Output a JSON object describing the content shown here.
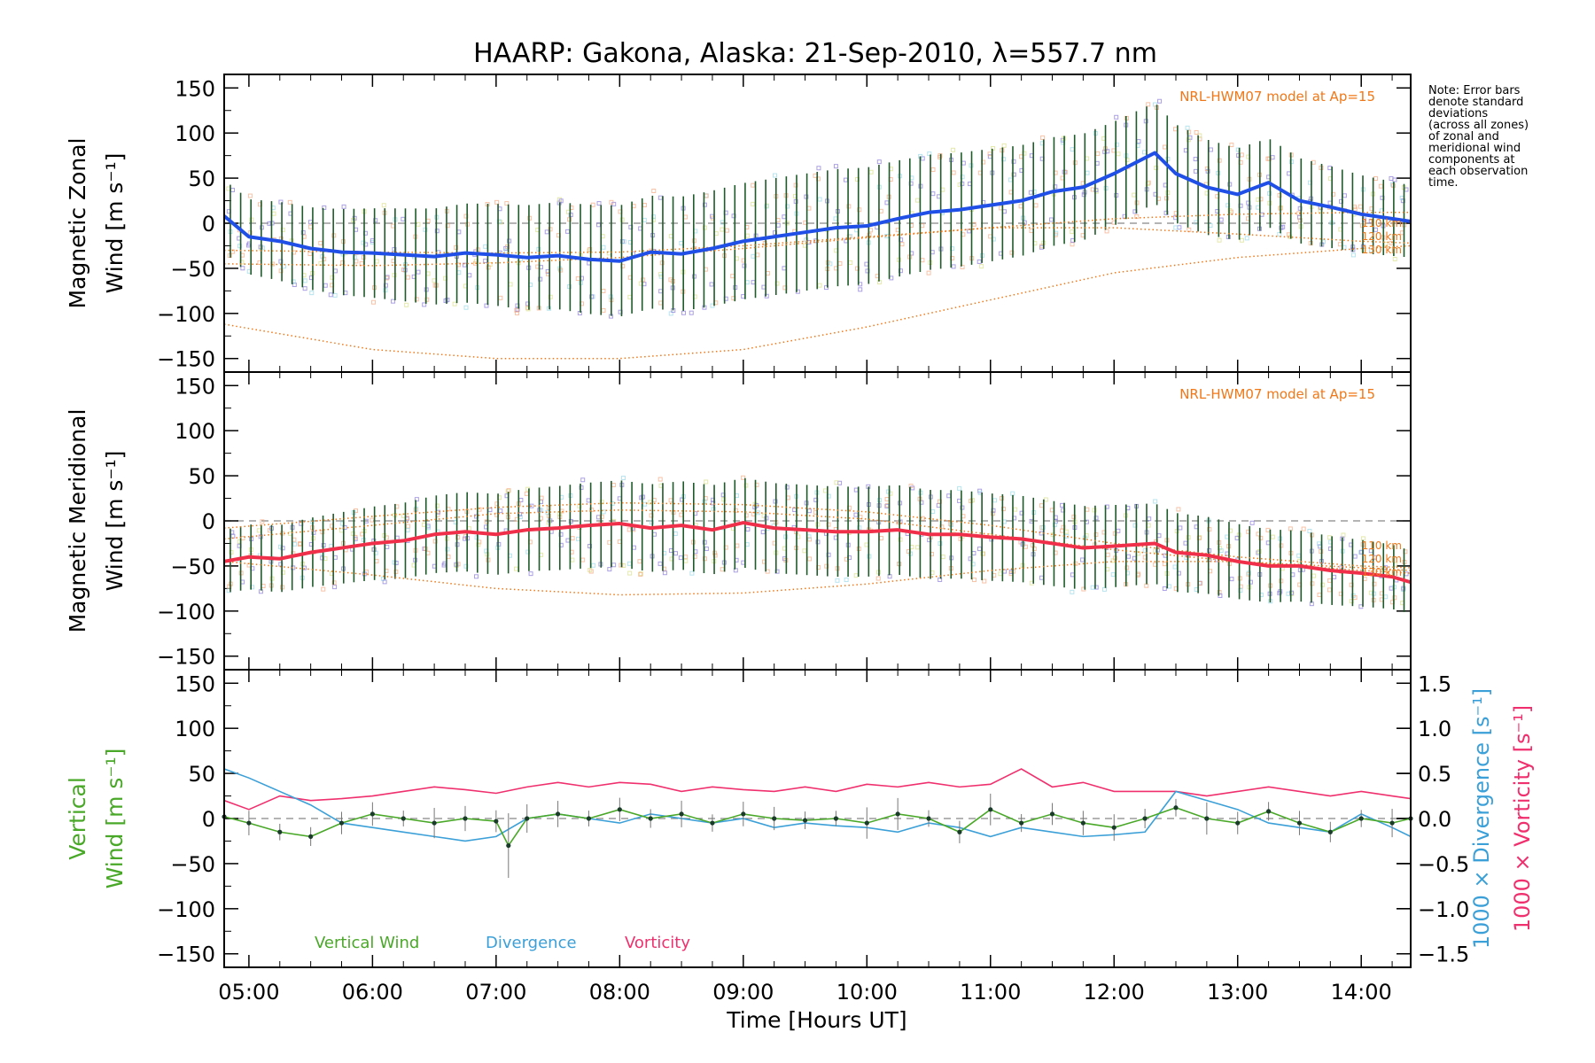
{
  "title": "HAARP: Gakona,  Alaska: 21-Sep-2010, λ=557.7 nm",
  "note_lines": [
    "Note: Error bars",
    "denote standard",
    "deviations",
    "(across all zones)",
    "of zonal and",
    "meridional wind",
    "components at",
    "each observation",
    "time."
  ],
  "colors": {
    "zonal": "#1f4fe6",
    "meridional": "#f0304a",
    "vertical_wind": "#4aa829",
    "divergence": "#3ca0d8",
    "vorticity": "#f0306e",
    "model": "#f07818",
    "errorbar": "#1f5a2a",
    "scatter": "#8878d8"
  },
  "chart_data": [
    {
      "type": "line",
      "panel": "zonal",
      "ylabel_line1": "Magnetic Zonal",
      "ylabel_line2": "Wind [m s⁻¹]",
      "ylim": [
        -165,
        165
      ],
      "yticks": [
        -150,
        -100,
        -50,
        0,
        50,
        100,
        150
      ],
      "model_label": "NRL-HWM07 model at Ap=15",
      "model_alt_labels": [
        "110 km",
        "120 km",
        "130 km"
      ],
      "series": [
        {
          "x": [
            4.8,
            5.0,
            5.25,
            5.5,
            5.75,
            6.0,
            6.25,
            6.5,
            6.75,
            7.0,
            7.25,
            7.5,
            7.75,
            8.0,
            8.25,
            8.5,
            8.75,
            9.0,
            9.25,
            9.5,
            9.75,
            10.0,
            10.25,
            10.5,
            10.75,
            11.0,
            11.25,
            11.5,
            11.75,
            12.0,
            12.33,
            12.5,
            12.75,
            13.0,
            13.25,
            13.5,
            13.75,
            14.0,
            14.25,
            14.4
          ],
          "y": [
            8,
            -15,
            -20,
            -28,
            -32,
            -33,
            -35,
            -37,
            -33,
            -35,
            -38,
            -36,
            -40,
            -42,
            -32,
            -34,
            -28,
            -20,
            -15,
            -10,
            -5,
            -3,
            5,
            12,
            15,
            20,
            25,
            35,
            40,
            55,
            78,
            55,
            40,
            32,
            45,
            25,
            18,
            10,
            5,
            2
          ]
        }
      ],
      "model": [
        {
          "x": [
            4.8,
            6.0,
            7.0,
            8.0,
            9.0,
            10.0,
            11.0,
            12.0,
            13.0,
            14.0,
            14.4
          ],
          "y": [
            -45,
            -47,
            -44,
            -38,
            -28,
            -16,
            -5,
            5,
            10,
            12,
            12
          ]
        },
        {
          "x": [
            4.8,
            6.0,
            7.0,
            8.0,
            9.0,
            10.0,
            11.0,
            12.0,
            13.0,
            14.0,
            14.4
          ],
          "y": [
            -30,
            -32,
            -33,
            -32,
            -25,
            -15,
            -5,
            -5,
            -12,
            -20,
            -22
          ]
        },
        {
          "x": [
            4.8,
            6.0,
            7.0,
            8.0,
            9.0,
            10.0,
            11.0,
            12.0,
            13.0,
            14.0,
            14.4
          ],
          "y": [
            -112,
            -140,
            -150,
            -150,
            -140,
            -115,
            -85,
            -55,
            -38,
            -28,
            -25
          ]
        }
      ]
    },
    {
      "type": "line",
      "panel": "meridional",
      "ylabel_line1": "Magnetic Meridional",
      "ylabel_line2": "Wind [m s⁻¹]",
      "ylim": [
        -165,
        165
      ],
      "yticks": [
        -150,
        -100,
        -50,
        0,
        50,
        100,
        150
      ],
      "model_label": "NRL-HWM07 model at Ap=15",
      "model_alt_labels": [
        "110 km",
        "120 km",
        "130 km"
      ],
      "series": [
        {
          "x": [
            4.8,
            5.0,
            5.25,
            5.5,
            5.75,
            6.0,
            6.25,
            6.5,
            6.75,
            7.0,
            7.25,
            7.5,
            7.75,
            8.0,
            8.25,
            8.5,
            8.75,
            9.0,
            9.25,
            9.5,
            9.75,
            10.0,
            10.25,
            10.5,
            10.75,
            11.0,
            11.25,
            11.5,
            11.75,
            12.0,
            12.33,
            12.5,
            12.75,
            13.0,
            13.25,
            13.5,
            13.75,
            14.0,
            14.25,
            14.4
          ],
          "y": [
            -45,
            -40,
            -42,
            -35,
            -30,
            -25,
            -22,
            -15,
            -12,
            -15,
            -10,
            -8,
            -5,
            -3,
            -8,
            -5,
            -10,
            -2,
            -8,
            -10,
            -12,
            -12,
            -10,
            -15,
            -15,
            -18,
            -20,
            -25,
            -30,
            -28,
            -25,
            -35,
            -38,
            -45,
            -50,
            -50,
            -55,
            -58,
            -62,
            -68
          ]
        }
      ],
      "model": [
        {
          "x": [
            4.8,
            6.0,
            7.0,
            8.0,
            9.0,
            10.0,
            11.0,
            12.0,
            13.0,
            14.0,
            14.4
          ],
          "y": [
            -8,
            5,
            15,
            20,
            18,
            10,
            -5,
            -25,
            -40,
            -50,
            -52
          ]
        },
        {
          "x": [
            4.8,
            6.0,
            7.0,
            8.0,
            9.0,
            10.0,
            11.0,
            12.0,
            13.0,
            14.0,
            14.4
          ],
          "y": [
            -20,
            -5,
            8,
            12,
            10,
            2,
            -15,
            -32,
            -45,
            -55,
            -58
          ]
        },
        {
          "x": [
            4.8,
            6.0,
            7.0,
            8.0,
            9.0,
            10.0,
            11.0,
            12.0,
            13.0,
            14.0,
            14.4
          ],
          "y": [
            -45,
            -60,
            -75,
            -82,
            -80,
            -70,
            -55,
            -45,
            -45,
            -52,
            -55
          ]
        }
      ]
    },
    {
      "type": "line",
      "panel": "vertical",
      "ylabel_line1": "Vertical",
      "ylabel_line2": "Wind [m s⁻¹]",
      "ylim": [
        -165,
        165
      ],
      "yticks": [
        -150,
        -100,
        -50,
        0,
        50,
        100,
        150
      ],
      "y2label_div": "1000 × Divergence [s⁻¹]",
      "y2label_vort": "1000 × Vorticity [s⁻¹]",
      "y2lim": [
        -1.65,
        1.65
      ],
      "y2ticks": [
        -1.5,
        -1.0,
        -0.5,
        0.0,
        0.5,
        1.0,
        1.5
      ],
      "y2tick_labels": [
        "−1.5",
        "−1.0",
        "−0.5",
        "0.0",
        "0.5",
        "1.0",
        "1.5"
      ],
      "legend": [
        "Vertical Wind",
        "Divergence",
        "Vorticity"
      ],
      "series": [
        {
          "name": "Vertical Wind",
          "x": [
            4.8,
            5.0,
            5.25,
            5.5,
            5.75,
            6.0,
            6.25,
            6.5,
            6.75,
            7.0,
            7.1,
            7.25,
            7.5,
            7.75,
            8.0,
            8.25,
            8.5,
            8.75,
            9.0,
            9.25,
            9.5,
            9.75,
            10.0,
            10.25,
            10.5,
            10.75,
            11.0,
            11.25,
            11.5,
            11.75,
            12.0,
            12.25,
            12.5,
            12.75,
            13.0,
            13.25,
            13.5,
            13.75,
            14.0,
            14.25,
            14.4
          ],
          "y": [
            2,
            -5,
            -15,
            -20,
            -5,
            5,
            0,
            -5,
            0,
            -3,
            -30,
            0,
            5,
            0,
            10,
            0,
            5,
            -5,
            5,
            0,
            -2,
            0,
            -5,
            5,
            0,
            -15,
            10,
            -5,
            5,
            -5,
            -10,
            0,
            12,
            0,
            -5,
            8,
            -5,
            -15,
            0,
            -5,
            0
          ]
        },
        {
          "name": "Divergence",
          "x": [
            4.8,
            5.0,
            5.25,
            5.5,
            5.75,
            6.0,
            6.25,
            6.5,
            6.75,
            7.0,
            7.25,
            7.5,
            7.75,
            8.0,
            8.25,
            8.5,
            8.75,
            9.0,
            9.25,
            9.5,
            9.75,
            10.0,
            10.25,
            10.5,
            10.75,
            11.0,
            11.25,
            11.5,
            11.75,
            12.0,
            12.25,
            12.5,
            12.75,
            13.0,
            13.25,
            13.5,
            13.75,
            14.0,
            14.25,
            14.4
          ],
          "y": [
            0.55,
            0.45,
            0.3,
            0.15,
            -0.05,
            -0.1,
            -0.15,
            -0.2,
            -0.25,
            -0.2,
            0.0,
            0.05,
            0.0,
            -0.05,
            0.05,
            0.0,
            -0.05,
            0.0,
            -0.1,
            -0.05,
            -0.08,
            -0.1,
            -0.15,
            -0.05,
            -0.1,
            -0.2,
            -0.1,
            -0.15,
            -0.2,
            -0.18,
            -0.15,
            0.3,
            0.2,
            0.1,
            -0.05,
            -0.1,
            -0.15,
            0.05,
            -0.1,
            -0.2
          ]
        },
        {
          "name": "Vorticity",
          "x": [
            4.8,
            5.0,
            5.25,
            5.5,
            5.75,
            6.0,
            6.25,
            6.5,
            6.75,
            7.0,
            7.25,
            7.5,
            7.75,
            8.0,
            8.25,
            8.5,
            8.75,
            9.0,
            9.25,
            9.5,
            9.75,
            10.0,
            10.25,
            10.5,
            10.75,
            11.0,
            11.25,
            11.5,
            11.75,
            12.0,
            12.25,
            12.5,
            12.75,
            13.0,
            13.25,
            13.5,
            13.75,
            14.0,
            14.25,
            14.4
          ],
          "y": [
            0.2,
            0.1,
            0.25,
            0.2,
            0.22,
            0.25,
            0.3,
            0.35,
            0.32,
            0.28,
            0.35,
            0.4,
            0.35,
            0.4,
            0.38,
            0.3,
            0.35,
            0.32,
            0.3,
            0.35,
            0.3,
            0.38,
            0.35,
            0.4,
            0.35,
            0.38,
            0.55,
            0.35,
            0.4,
            0.3,
            0.3,
            0.3,
            0.25,
            0.3,
            0.35,
            0.3,
            0.25,
            0.3,
            0.25,
            0.22
          ]
        }
      ]
    }
  ],
  "xaxis": {
    "label": "Time [Hours UT]",
    "xlim": [
      4.8,
      14.4
    ],
    "ticks": [
      5,
      6,
      7,
      8,
      9,
      10,
      11,
      12,
      13,
      14
    ],
    "tick_labels": [
      "05:00",
      "06:00",
      "07:00",
      "08:00",
      "09:00",
      "10:00",
      "11:00",
      "12:00",
      "13:00",
      "14:00"
    ]
  }
}
